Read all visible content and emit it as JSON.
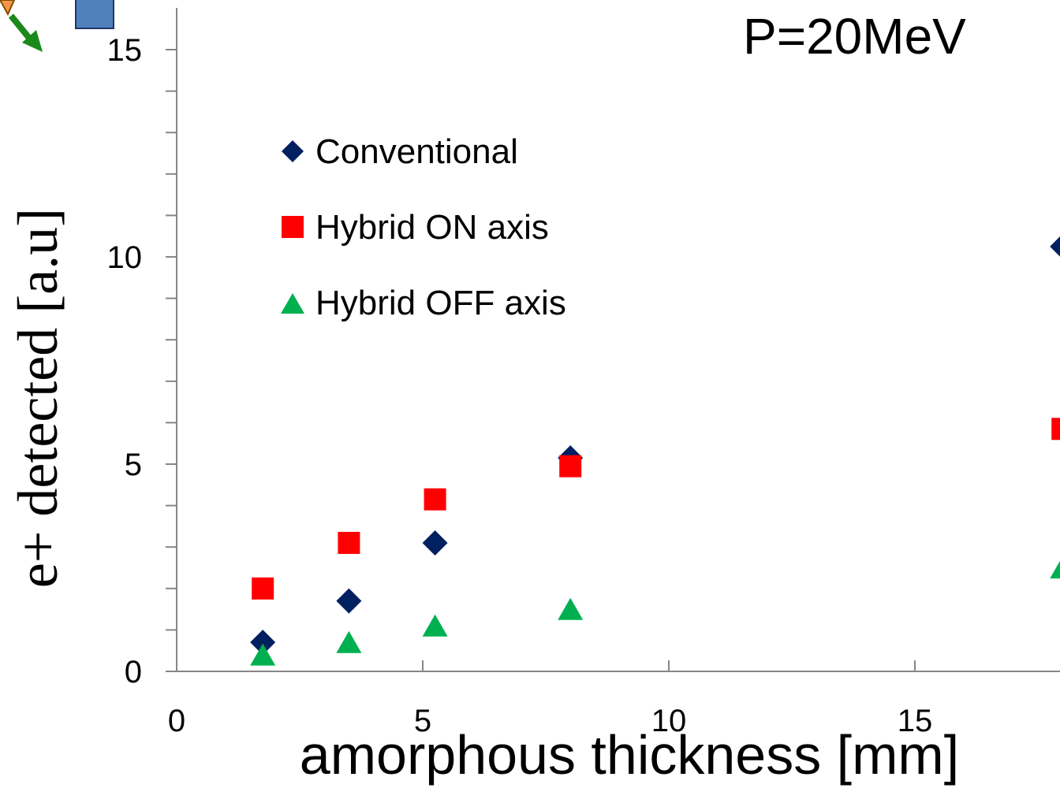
{
  "chart_data": {
    "type": "scatter",
    "title": "P=20MeV",
    "xlabel": "amorphous thickness [mm]",
    "ylabel": "e+ detected [a.u]",
    "xlim": [
      0,
      20
    ],
    "ylim": [
      0,
      15
    ],
    "xticks": [
      0,
      5,
      10,
      15
    ],
    "yticks": [
      0,
      5,
      10,
      15
    ],
    "grid": false,
    "legend_position": "upper-left",
    "series": [
      {
        "name": "Conventional",
        "marker": "diamond",
        "color": "#002060",
        "points": [
          {
            "x": 1.75,
            "y": 0.7
          },
          {
            "x": 3.5,
            "y": 1.7
          },
          {
            "x": 5.25,
            "y": 3.1
          },
          {
            "x": 8.0,
            "y": 5.15
          },
          {
            "x": 18.0,
            "y": 10.25
          }
        ]
      },
      {
        "name": "Hybrid ON axis",
        "marker": "square",
        "color": "#ff0000",
        "points": [
          {
            "x": 1.75,
            "y": 2.0
          },
          {
            "x": 3.5,
            "y": 3.1
          },
          {
            "x": 5.25,
            "y": 4.15
          },
          {
            "x": 8.0,
            "y": 4.95
          },
          {
            "x": 18.0,
            "y": 5.85
          }
        ]
      },
      {
        "name": "Hybrid OFF axis",
        "marker": "triangle",
        "color": "#00b050",
        "points": [
          {
            "x": 1.75,
            "y": 0.35
          },
          {
            "x": 3.5,
            "y": 0.65
          },
          {
            "x": 5.25,
            "y": 1.05
          },
          {
            "x": 8.0,
            "y": 1.45
          },
          {
            "x": 18.0,
            "y": 2.45
          }
        ]
      }
    ]
  },
  "corner_graphic": {
    "arrow_color": "#1a8a1a",
    "box_color": "#4f81bd",
    "source_color": "#f79646"
  }
}
